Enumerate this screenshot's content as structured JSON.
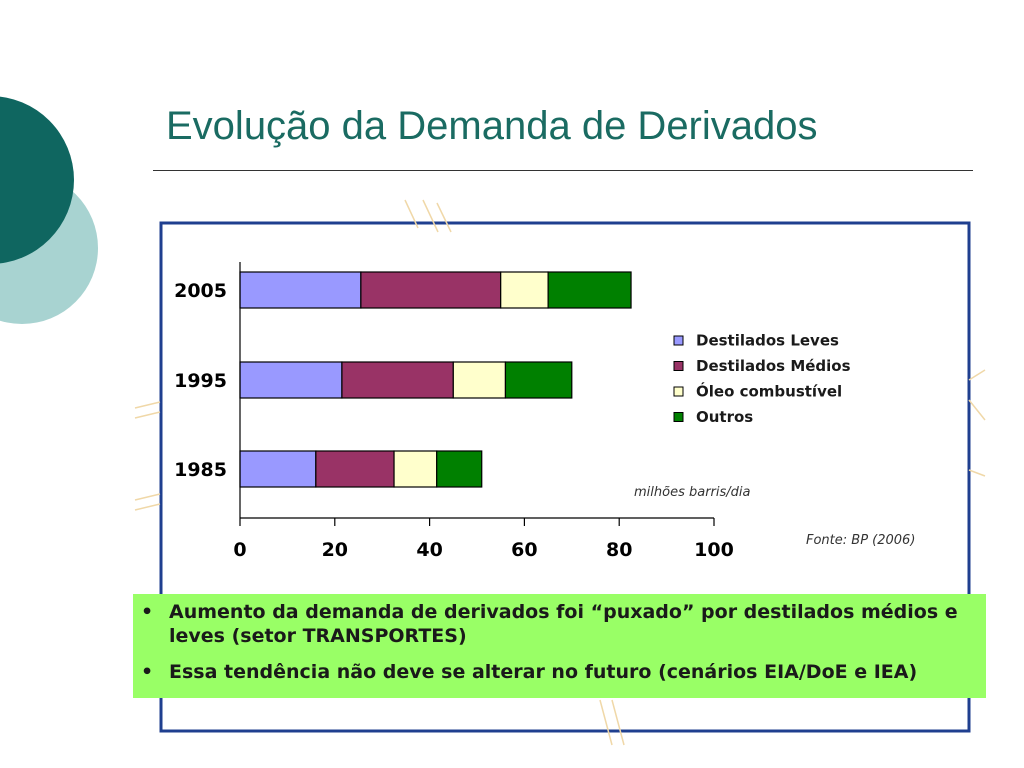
{
  "slide": {
    "title": "Evolução da Demanda de Derivados"
  },
  "chart_data": {
    "type": "bar",
    "orientation": "horizontal",
    "stacked": true,
    "categories": [
      "2005",
      "1995",
      "1985"
    ],
    "series": [
      {
        "name": "Destilados Leves",
        "color": "#9999ff",
        "values": [
          25.5,
          21.5,
          16
        ]
      },
      {
        "name": "Destilados Médios",
        "color": "#993366",
        "values": [
          29.5,
          23.5,
          16.5
        ]
      },
      {
        "name": "Óleo combustível",
        "color": "#ffffcc",
        "values": [
          10,
          11,
          9
        ]
      },
      {
        "name": "Outros",
        "color": "#008000",
        "values": [
          17.5,
          14,
          9.5
        ]
      }
    ],
    "xticks": [
      "0",
      "20",
      "40",
      "60",
      "80",
      "100"
    ],
    "xlim": [
      0,
      100
    ],
    "unit_label": "milhões  barris/dia",
    "source": "Fonte: BP (2006)",
    "legend_position": "right"
  },
  "bullets": [
    "Aumento da demanda de derivados foi “puxado” por destilados médios e leves (setor TRANSPORTES)",
    "Essa tendência não deve se alterar no futuro (cenários EIA/DoE e IEA)"
  ],
  "bullet_symbol": "•"
}
